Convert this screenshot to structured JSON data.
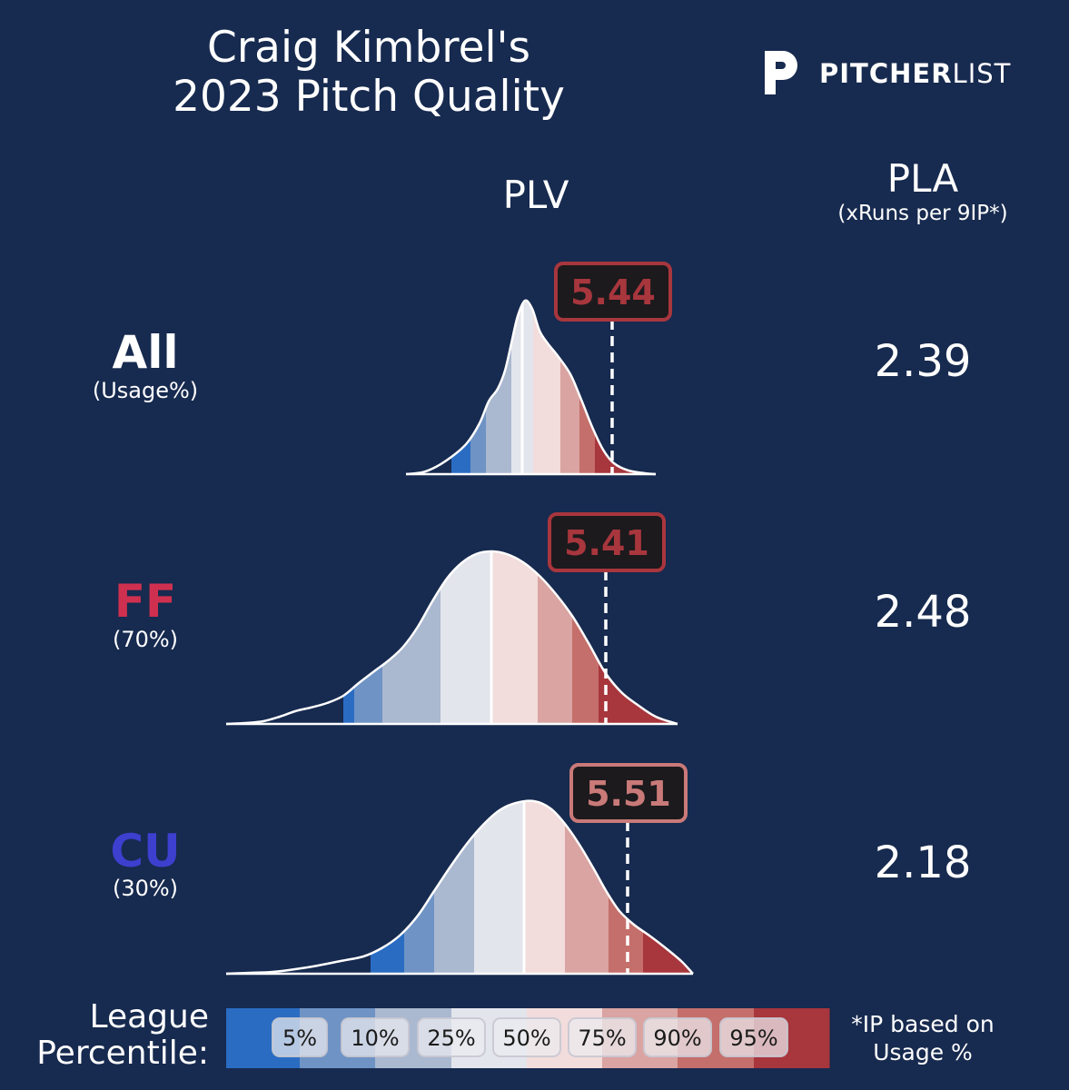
{
  "title": {
    "line1": "Craig Kimbrel's",
    "line2": "2023 Pitch Quality"
  },
  "brand": {
    "bold": "PITCHER",
    "light": "LIST"
  },
  "headers": {
    "plv": "PLV",
    "pla": "PLA",
    "pla_sub": "(xRuns per 9IP*)"
  },
  "rows": [
    {
      "name": "All",
      "usage": "(Usage%)",
      "name_color": "#ffffff",
      "plv": "5.44",
      "plv_color": "#a8363d",
      "pla": "2.39"
    },
    {
      "name": "FF",
      "usage": "(70%)",
      "name_color": "#d0304f",
      "plv": "5.41",
      "plv_color": "#a8363d",
      "pla": "2.48"
    },
    {
      "name": "CU",
      "usage": "(30%)",
      "name_color": "#3d3fcf",
      "plv": "5.51",
      "plv_color": "#c97a78",
      "pla": "2.18"
    }
  ],
  "legend": {
    "label_line1": "League",
    "label_line2": "Percentile:",
    "ticks": [
      "5%",
      "10%",
      "25%",
      "50%",
      "75%",
      "90%",
      "95%"
    ],
    "colors": [
      "#2a6cc2",
      "#6f93c4",
      "#aab8d0",
      "#e3e5ec",
      "#f2dcdc",
      "#d9a4a2",
      "#c46f6b",
      "#a8363d"
    ]
  },
  "footnote": {
    "line1": "*IP based on",
    "line2": "Usage %"
  },
  "chart_data": [
    {
      "type": "area",
      "label": "All",
      "plv": 5.44,
      "pla": 2.39
    },
    {
      "type": "area",
      "label": "FF",
      "usage_pct": 70,
      "plv": 5.41,
      "pla": 2.48
    },
    {
      "type": "area",
      "label": "CU",
      "usage_pct": 30,
      "plv": 5.51,
      "pla": 2.18
    }
  ]
}
